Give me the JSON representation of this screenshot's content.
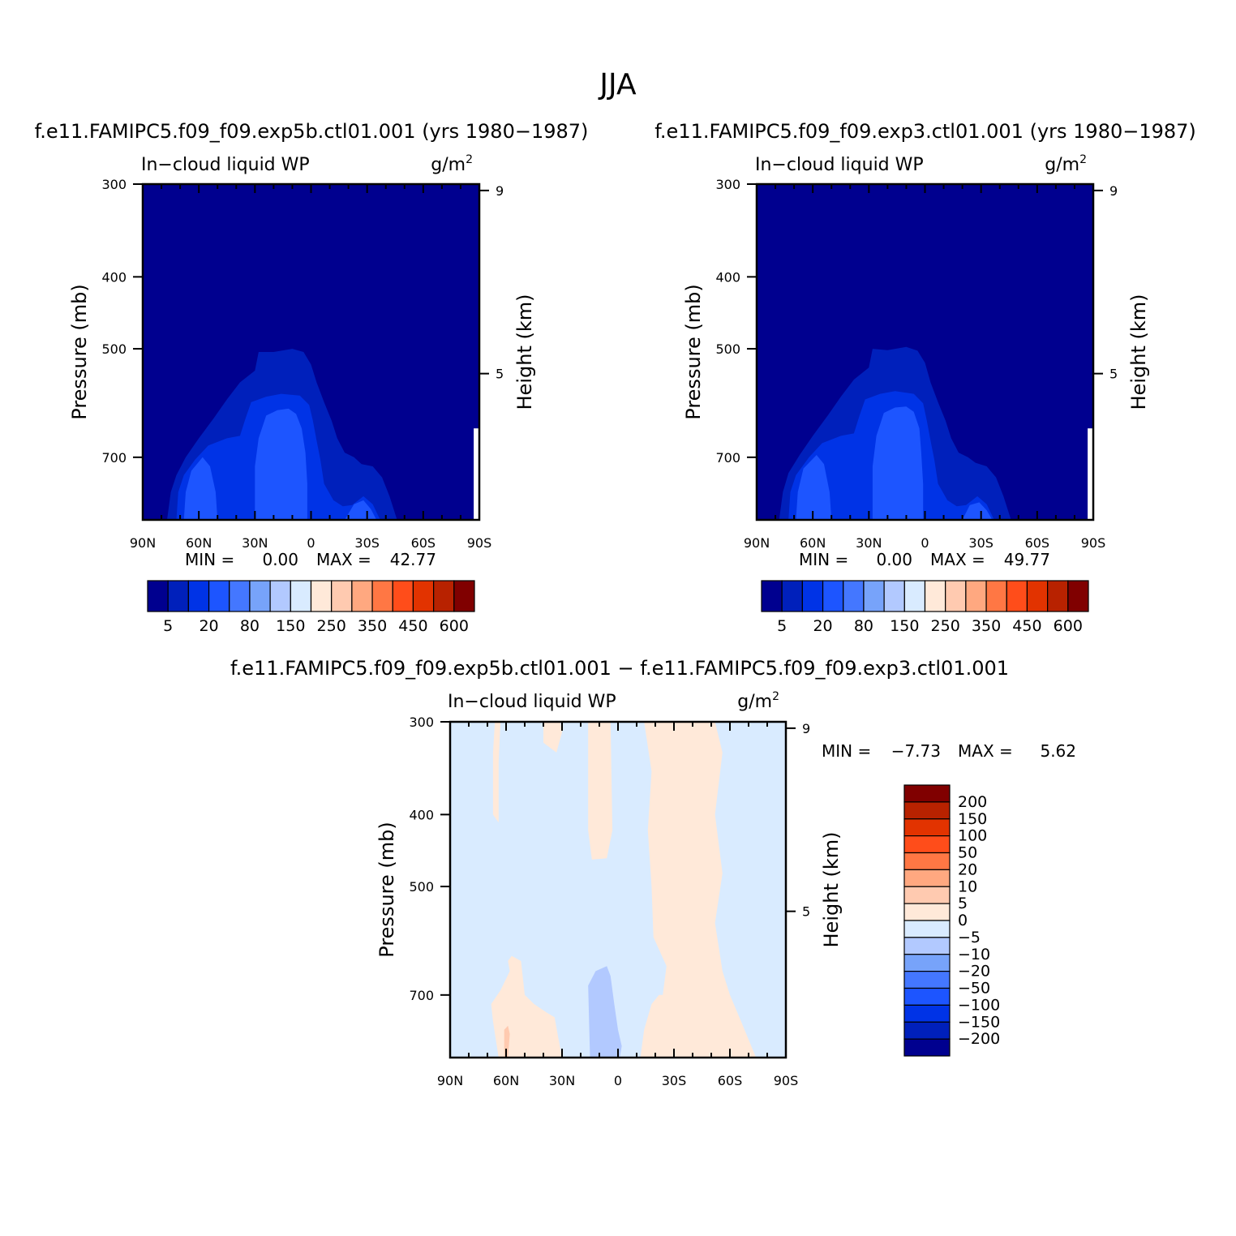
{
  "figure": {
    "season": "JJA"
  },
  "colors": {
    "abs_levels": [
      "#00008f",
      "#0020bb",
      "#0033e6",
      "#1d55ff",
      "#4477ff",
      "#77a3fa",
      "#b2c9ff",
      "#d9ebff",
      "#ffe9d9",
      "#ffcab0",
      "#ffa880",
      "#ff7744",
      "#ff4d1a",
      "#e23300",
      "#b82200",
      "#800000"
    ],
    "diff_levels": [
      "#00008f",
      "#0020bb",
      "#0033e6",
      "#1d55ff",
      "#4477ff",
      "#77a3fa",
      "#b2c9ff",
      "#d9ebff",
      "#ffe9d9",
      "#ffcab0",
      "#ffa880",
      "#ff7744",
      "#ff4d1a",
      "#e23300",
      "#b82200",
      "#800000"
    ]
  },
  "chart_data": [
    {
      "type": "contour",
      "id": "left",
      "title": "f.e11.FAMIPC5.f09_f09.exp5b.ctl01.001 (yrs 1980−1987)",
      "variable": "In−cloud liquid WP",
      "units": "g/m",
      "units_sup": "2",
      "ylabel": "Pressure (mb)",
      "ylabel_right": "Height (km)",
      "x_ticks": [
        "90N",
        "60N",
        "30N",
        "0",
        "30S",
        "60S",
        "90S"
      ],
      "y_ticks": [
        "300",
        "400",
        "500",
        "700"
      ],
      "y_ticks_right": [
        "9",
        "5"
      ],
      "min_label": "MIN =",
      "min_value": "0.00",
      "max_label": "MAX =",
      "max_value": "42.77",
      "colorbar_labels": [
        "5",
        "20",
        "80",
        "150",
        "250",
        "350",
        "450",
        "600"
      ],
      "contours": [
        {
          "level": 1,
          "points": [
            [
              -77,
              850
            ],
            [
              -75,
              780
            ],
            [
              -72,
              740
            ],
            [
              -67,
              700
            ],
            [
              -60,
              660
            ],
            [
              -52,
              620
            ],
            [
              -45,
              585
            ],
            [
              -38,
              555
            ],
            [
              -30,
              535
            ],
            [
              -28,
              505
            ],
            [
              -20,
              505
            ],
            [
              -10,
              500
            ],
            [
              -4,
              505
            ],
            [
              0,
              525
            ],
            [
              3,
              555
            ],
            [
              7,
              590
            ],
            [
              11,
              625
            ],
            [
              14,
              660
            ],
            [
              18,
              690
            ],
            [
              23,
              700
            ],
            [
              27,
              715
            ],
            [
              33,
              720
            ],
            [
              38,
              745
            ],
            [
              42,
              790
            ],
            [
              46,
              850
            ]
          ]
        },
        {
          "level": 2,
          "points": [
            [
              -72,
              850
            ],
            [
              -71,
              780
            ],
            [
              -68,
              740
            ],
            [
              -62,
              705
            ],
            [
              -55,
              675
            ],
            [
              -45,
              660
            ],
            [
              -38,
              655
            ],
            [
              -35,
              620
            ],
            [
              -32,
              590
            ],
            [
              -24,
              580
            ],
            [
              -16,
              575
            ],
            [
              -6,
              578
            ],
            [
              -1,
              595
            ],
            [
              1,
              625
            ],
            [
              3,
              665
            ],
            [
              5,
              705
            ],
            [
              7,
              760
            ],
            [
              12,
              800
            ],
            [
              17,
              815
            ],
            [
              22,
              812
            ],
            [
              28,
              790
            ],
            [
              33,
              810
            ],
            [
              37,
              850
            ]
          ]
        },
        {
          "level": 3,
          "points": [
            [
              -68,
              850
            ],
            [
              -67,
              780
            ],
            [
              -64,
              730
            ],
            [
              -58,
              700
            ],
            [
              -54,
              720
            ],
            [
              -51,
              780
            ],
            [
              -50,
              850
            ]
          ]
        },
        {
          "level": 3,
          "points": [
            [
              -30,
              850
            ],
            [
              -30,
              720
            ],
            [
              -28,
              660
            ],
            [
              -24,
              615
            ],
            [
              -18,
              605
            ],
            [
              -12,
              602
            ],
            [
              -8,
              612
            ],
            [
              -5,
              640
            ],
            [
              -3,
              690
            ],
            [
              -2,
              760
            ],
            [
              -2,
              850
            ]
          ]
        },
        {
          "level": 3,
          "points": [
            [
              18,
              850
            ],
            [
              23,
              810
            ],
            [
              28,
              800
            ],
            [
              32,
              822
            ],
            [
              35,
              850
            ]
          ]
        }
      ]
    },
    {
      "type": "contour",
      "id": "right",
      "title": "f.e11.FAMIPC5.f09_f09.exp3.ctl01.001 (yrs 1980−1987)",
      "variable": "In−cloud liquid WP",
      "units": "g/m",
      "units_sup": "2",
      "ylabel": "Pressure (mb)",
      "ylabel_right": "Height (km)",
      "x_ticks": [
        "90N",
        "60N",
        "30N",
        "0",
        "30S",
        "60S",
        "90S"
      ],
      "y_ticks": [
        "300",
        "400",
        "500",
        "700"
      ],
      "y_ticks_right": [
        "9",
        "5"
      ],
      "min_label": "MIN =",
      "min_value": "0.00",
      "max_label": "MAX =",
      "max_value": "49.77",
      "colorbar_labels": [
        "5",
        "20",
        "80",
        "150",
        "250",
        "350",
        "450",
        "600"
      ],
      "contours": [
        {
          "level": 1,
          "points": [
            [
              -78,
              850
            ],
            [
              -76,
              780
            ],
            [
              -73,
              735
            ],
            [
              -67,
              695
            ],
            [
              -60,
              655
            ],
            [
              -52,
              615
            ],
            [
              -45,
              580
            ],
            [
              -38,
              550
            ],
            [
              -30,
              530
            ],
            [
              -28,
              500
            ],
            [
              -20,
              502
            ],
            [
              -10,
              497
            ],
            [
              -4,
              503
            ],
            [
              0,
              522
            ],
            [
              3,
              555
            ],
            [
              7,
              590
            ],
            [
              11,
              625
            ],
            [
              14,
              660
            ],
            [
              18,
              690
            ],
            [
              23,
              700
            ],
            [
              27,
              712
            ],
            [
              33,
              720
            ],
            [
              38,
              745
            ],
            [
              42,
              790
            ],
            [
              46,
              850
            ]
          ]
        },
        {
          "level": 2,
          "points": [
            [
              -73,
              850
            ],
            [
              -72,
              780
            ],
            [
              -69,
              740
            ],
            [
              -62,
              700
            ],
            [
              -55,
              670
            ],
            [
              -45,
              655
            ],
            [
              -38,
              650
            ],
            [
              -35,
              615
            ],
            [
              -32,
              585
            ],
            [
              -24,
              575
            ],
            [
              -16,
              570
            ],
            [
              -6,
              575
            ],
            [
              -1,
              592
            ],
            [
              1,
              625
            ],
            [
              3,
              665
            ],
            [
              5,
              705
            ],
            [
              7,
              760
            ],
            [
              12,
              800
            ],
            [
              17,
              815
            ],
            [
              22,
              812
            ],
            [
              28,
              790
            ],
            [
              33,
              810
            ],
            [
              37,
              850
            ]
          ]
        },
        {
          "level": 3,
          "points": [
            [
              -69,
              850
            ],
            [
              -68,
              780
            ],
            [
              -65,
              725
            ],
            [
              -58,
              695
            ],
            [
              -54,
              715
            ],
            [
              -51,
              780
            ],
            [
              -50,
              850
            ]
          ]
        },
        {
          "level": 3,
          "points": [
            [
              -28,
              850
            ],
            [
              -28,
              720
            ],
            [
              -26,
              655
            ],
            [
              -22,
              610
            ],
            [
              -16,
              600
            ],
            [
              -10,
              598
            ],
            [
              -6,
              608
            ],
            [
              -3,
              640
            ],
            [
              -2,
              690
            ],
            [
              -1,
              760
            ],
            [
              -1,
              850
            ]
          ]
        },
        {
          "level": 3,
          "points": [
            [
              20,
              850
            ],
            [
              24,
              812
            ],
            [
              29,
              805
            ],
            [
              33,
              825
            ],
            [
              36,
              850
            ]
          ]
        }
      ]
    },
    {
      "type": "contour",
      "id": "diff",
      "title": "f.e11.FAMIPC5.f09_f09.exp5b.ctl01.001 − f.e11.FAMIPC5.f09_f09.exp3.ctl01.001",
      "variable": "In−cloud liquid WP",
      "units": "g/m",
      "units_sup": "2",
      "ylabel": "Pressure (mb)",
      "ylabel_right": "Height (km)",
      "x_ticks": [
        "90N",
        "60N",
        "30N",
        "0",
        "30S",
        "60S",
        "90S"
      ],
      "y_ticks": [
        "300",
        "400",
        "500",
        "700"
      ],
      "y_ticks_right": [
        "9",
        "5"
      ],
      "min_label": "MIN =",
      "min_value": "−7.73",
      "max_label": "MAX =",
      "max_value": "5.62",
      "colorbar_labels": [
        "200",
        "150",
        "100",
        "50",
        "20",
        "10",
        "5",
        "0",
        "−5",
        "−10",
        "−20",
        "−50",
        "−100",
        "−150",
        "−200"
      ],
      "contours": [
        {
          "level": 8,
          "points": [
            [
              -64,
              850
            ],
            [
              -67,
              760
            ],
            [
              -68,
              720
            ],
            [
              -63,
              690
            ],
            [
              -58,
              650
            ],
            [
              -59,
              630
            ],
            [
              -57,
              620
            ],
            [
              -52,
              630
            ],
            [
              -50,
              700
            ],
            [
              -45,
              720
            ],
            [
              -38,
              740
            ],
            [
              -34,
              750
            ],
            [
              -32,
              800
            ],
            [
              -30,
              850
            ]
          ]
        },
        {
          "level": 8,
          "points": [
            [
              -66,
              300
            ],
            [
              -67,
              330
            ],
            [
              -67,
              400
            ],
            [
              -64,
              410
            ],
            [
              -64,
              340
            ],
            [
              -63,
              300
            ]
          ]
        },
        {
          "level": 8,
          "points": [
            [
              -40,
              300
            ],
            [
              -40,
              320
            ],
            [
              -33,
              330
            ],
            [
              -30,
              310
            ],
            [
              -31,
              300
            ]
          ]
        },
        {
          "level": 8,
          "points": [
            [
              -16,
              300
            ],
            [
              -16,
              420
            ],
            [
              -14,
              460
            ],
            [
              -6,
              458
            ],
            [
              -3,
              420
            ],
            [
              -4,
              300
            ]
          ]
        },
        {
          "level": 8,
          "points": [
            [
              12,
              850
            ],
            [
              14,
              780
            ],
            [
              18,
              720
            ],
            [
              22,
              700
            ],
            [
              24,
              700
            ],
            [
              26,
              640
            ],
            [
              19,
              585
            ],
            [
              18,
              500
            ],
            [
              16,
              420
            ],
            [
              18,
              350
            ],
            [
              14,
              300
            ],
            [
              52,
              300
            ],
            [
              56,
              330
            ],
            [
              52,
              400
            ],
            [
              56,
              480
            ],
            [
              52,
              560
            ],
            [
              56,
              650
            ],
            [
              60,
              700
            ],
            [
              66,
              760
            ],
            [
              74,
              850
            ]
          ]
        },
        {
          "level": 9,
          "points": [
            [
              -61,
              850
            ],
            [
              -61,
              780
            ],
            [
              -59,
              770
            ],
            [
              -58,
              790
            ],
            [
              -59,
              850
            ]
          ]
        },
        {
          "level": 6,
          "points": [
            [
              -15,
              850
            ],
            [
              -16,
              680
            ],
            [
              -12,
              650
            ],
            [
              -6,
              640
            ],
            [
              -4,
              660
            ],
            [
              -2,
              720
            ],
            [
              0,
              780
            ],
            [
              2,
              820
            ],
            [
              1,
              850
            ]
          ]
        }
      ]
    }
  ]
}
